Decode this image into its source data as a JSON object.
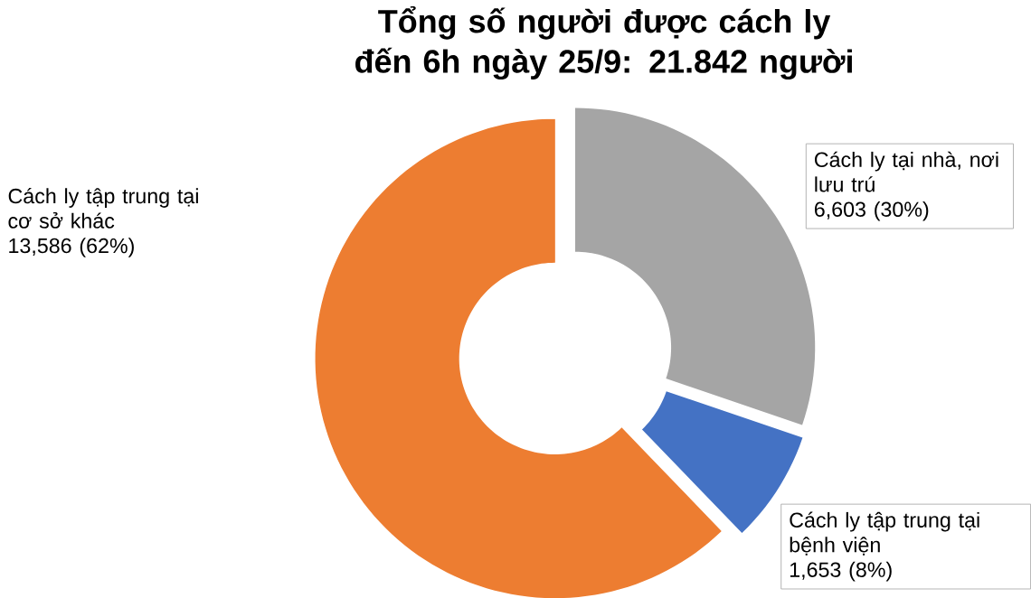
{
  "chart_data": {
    "type": "donut",
    "title": "Tổng số người được cách ly đến 6h ngày 25/9: 21.842 người",
    "categories": [
      "Cách ly tại nhà, nơi lưu trú",
      "Cách ly tập trung tại bệnh viện",
      "Cách ly tập trung tại cơ sở khác"
    ],
    "values": [
      6603,
      1653,
      13586
    ],
    "value_labels": [
      "6,603 (30%)",
      "1,653 (8%)",
      "13,586 (62%)"
    ],
    "colors": [
      "#a5a5a5",
      "#4472c4",
      "#ed7d31"
    ]
  }
}
